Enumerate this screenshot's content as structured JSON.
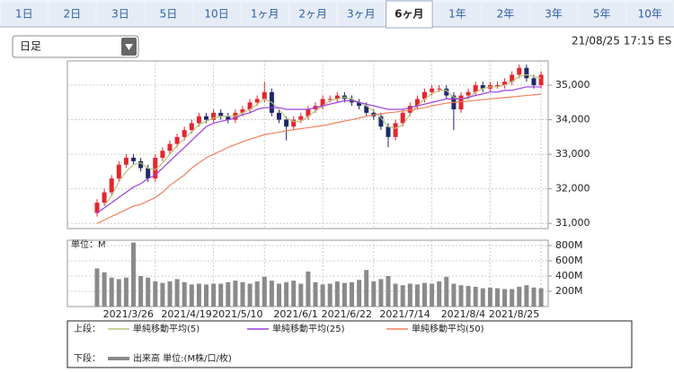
{
  "tabs": [
    "1日",
    "2日",
    "3日",
    "5日",
    "10日",
    "1ヶ月",
    "2ヶ月",
    "3ヶ月",
    "6ヶ月",
    "1年",
    "2年",
    "3年",
    "5年",
    "10年"
  ],
  "active_tab": 8,
  "dropdown": "日足",
  "timestamp": "21/08/25 17:15 ES",
  "legend": {
    "upper_label": "上段：",
    "lower_label": "下段："
  },
  "chart_data": [
    {
      "type": "candlestick",
      "up_color": "#e3262e",
      "down_color": "#1c2a6b",
      "open": [
        31300,
        31600,
        31900,
        32300,
        32700,
        32900,
        32800,
        32600,
        32300,
        32900,
        33100,
        33300,
        33500,
        33700,
        33900,
        34100,
        34000,
        34200,
        34100,
        34000,
        34200,
        34300,
        34500,
        34600,
        34800,
        34200,
        34000,
        33800,
        34000,
        34100,
        34300,
        34400,
        34600,
        34600,
        34700,
        34600,
        34500,
        34400,
        34200,
        34100,
        33800,
        33500,
        33900,
        34200,
        34400,
        34600,
        34800,
        34900,
        34900,
        34700,
        34300,
        34700,
        34800,
        35000,
        34900,
        35000,
        35000,
        35100,
        35300,
        35500,
        35200,
        35000
      ],
      "high": [
        31700,
        32000,
        32400,
        32800,
        33000,
        33000,
        32900,
        32700,
        33000,
        33200,
        33400,
        33600,
        33800,
        34000,
        34200,
        34200,
        34300,
        34300,
        34200,
        34300,
        34400,
        34600,
        34700,
        35100,
        34900,
        34300,
        34100,
        34100,
        34200,
        34400,
        34500,
        34700,
        34700,
        34800,
        34800,
        34700,
        34600,
        34500,
        34300,
        34200,
        33900,
        34000,
        34300,
        34500,
        34700,
        34900,
        35000,
        35000,
        35000,
        34800,
        34800,
        34900,
        35100,
        35100,
        35100,
        35100,
        35200,
        35400,
        35600,
        35600,
        35300,
        35400
      ],
      "low": [
        31200,
        31500,
        31800,
        32200,
        32600,
        32700,
        32500,
        32200,
        32200,
        32800,
        33000,
        33200,
        33400,
        33600,
        33800,
        33900,
        33900,
        34000,
        33900,
        33900,
        34100,
        34200,
        34400,
        34500,
        34100,
        33900,
        33400,
        33700,
        33900,
        34000,
        34200,
        34300,
        34500,
        34500,
        34500,
        34400,
        34300,
        34100,
        34000,
        33700,
        33200,
        33400,
        33800,
        34100,
        34300,
        34500,
        34700,
        34800,
        34600,
        33700,
        34200,
        34600,
        34700,
        34800,
        34800,
        34900,
        34900,
        35000,
        35200,
        35100,
        34900,
        34900
      ],
      "close": [
        31600,
        31900,
        32300,
        32700,
        32900,
        32800,
        32600,
        32300,
        32900,
        33100,
        33300,
        33500,
        33700,
        33900,
        34100,
        34000,
        34200,
        34100,
        34000,
        34200,
        34300,
        34500,
        34600,
        34800,
        34200,
        34000,
        33800,
        34000,
        34100,
        34300,
        34400,
        34600,
        34600,
        34700,
        34600,
        34500,
        34400,
        34200,
        34100,
        33800,
        33500,
        33900,
        34200,
        34400,
        34600,
        34800,
        34900,
        34900,
        34700,
        34300,
        34700,
        34800,
        35000,
        34900,
        35000,
        35000,
        35100,
        35300,
        35500,
        35200,
        35000,
        35300
      ],
      "series": [
        {
          "name": "単純移動平均(5)",
          "color": "#b9c27c",
          "values": [
            null,
            31500,
            31800,
            32200,
            32500,
            32700,
            32750,
            32600,
            32550,
            32750,
            33000,
            33250,
            33450,
            33650,
            33850,
            33950,
            34050,
            34100,
            34100,
            34100,
            34200,
            34300,
            34450,
            34600,
            34500,
            34300,
            34050,
            33950,
            33950,
            34100,
            34250,
            34400,
            34550,
            34600,
            34650,
            34600,
            34500,
            34400,
            34250,
            34050,
            33800,
            33750,
            33850,
            34150,
            34400,
            34600,
            34750,
            34850,
            34850,
            34650,
            34600,
            34600,
            34800,
            34900,
            34950,
            34950,
            35000,
            35100,
            35250,
            35300,
            35250,
            35200
          ]
        },
        {
          "name": "単純移動平均(25)",
          "color": "#9a3ee0",
          "values": [
            31300,
            31450,
            31600,
            31750,
            31900,
            32050,
            32150,
            32300,
            32400,
            32600,
            32800,
            33000,
            33200,
            33400,
            33600,
            33800,
            33900,
            33950,
            34000,
            34050,
            34150,
            34200,
            34300,
            34350,
            34350,
            34350,
            34300,
            34300,
            34300,
            34300,
            34350,
            34400,
            34450,
            34500,
            34550,
            34550,
            34500,
            34450,
            34400,
            34350,
            34300,
            34300,
            34300,
            34350,
            34400,
            34450,
            34500,
            34550,
            34600,
            34600,
            34600,
            34650,
            34700,
            34750,
            34800,
            34800,
            34850,
            34850,
            34900,
            34950,
            34950,
            34950
          ]
        },
        {
          "name": "単純移動平均(50)",
          "color": "#f0805e",
          "values": [
            31000,
            31100,
            31200,
            31300,
            31400,
            31500,
            31550,
            31650,
            31750,
            31900,
            32100,
            32250,
            32400,
            32600,
            32750,
            32900,
            33000,
            33100,
            33200,
            33280,
            33360,
            33440,
            33500,
            33570,
            33600,
            33640,
            33680,
            33710,
            33740,
            33770,
            33800,
            33830,
            33870,
            33920,
            33960,
            34000,
            34050,
            34100,
            34140,
            34170,
            34200,
            34220,
            34250,
            34280,
            34310,
            34350,
            34400,
            34440,
            34480,
            34500,
            34520,
            34540,
            34560,
            34580,
            34600,
            34620,
            34640,
            34660,
            34680,
            34700,
            34720,
            34740
          ]
        }
      ],
      "ylim": [
        30850,
        35700
      ],
      "yticks": [
        {
          "value": 31000,
          "label": "31,000"
        },
        {
          "value": 32000,
          "label": "32,000"
        },
        {
          "value": 33000,
          "label": "33,000"
        },
        {
          "value": 34000,
          "label": "34,000"
        },
        {
          "value": 35000,
          "label": "35,000"
        }
      ],
      "grid": true
    },
    {
      "type": "bar",
      "unit_label": "単位：M",
      "categories": [
        null,
        null,
        null,
        null,
        null,
        null,
        null,
        null,
        "2021/3/26",
        null,
        null,
        null,
        null,
        null,
        null,
        null,
        "2021/4/19",
        null,
        null,
        null,
        null,
        null,
        null,
        "2021/5/10",
        null,
        null,
        null,
        null,
        null,
        null,
        null,
        "2021/6/1",
        null,
        null,
        null,
        null,
        null,
        null,
        "2021/6/22",
        null,
        null,
        null,
        null,
        null,
        null,
        null,
        "2021/7/14",
        null,
        null,
        null,
        null,
        null,
        null,
        null,
        "2021/8/4",
        null,
        null,
        null,
        null,
        null,
        null,
        "2021/8/25"
      ],
      "series": [
        {
          "name": "出来高 単位:(M株/口/枚)",
          "color": "#8a8a8a",
          "values": [
            500,
            450,
            380,
            360,
            380,
            840,
            400,
            380,
            330,
            310,
            330,
            360,
            320,
            290,
            300,
            290,
            300,
            300,
            320,
            340,
            320,
            300,
            330,
            390,
            340,
            300,
            320,
            340,
            300,
            460,
            320,
            290,
            300,
            330,
            310,
            320,
            350,
            480,
            330,
            360,
            400,
            300,
            280,
            300,
            290,
            310,
            300,
            330,
            390,
            300,
            280,
            270,
            260,
            240,
            250,
            240,
            230,
            230,
            260,
            280,
            250,
            240
          ]
        }
      ],
      "ylim": [
        0,
        870
      ],
      "yticks": [
        {
          "value": 200,
          "label": "200M"
        },
        {
          "value": 400,
          "label": "400M"
        },
        {
          "value": 600,
          "label": "600M"
        },
        {
          "value": 800,
          "label": "800M"
        }
      ],
      "grid": true
    }
  ]
}
